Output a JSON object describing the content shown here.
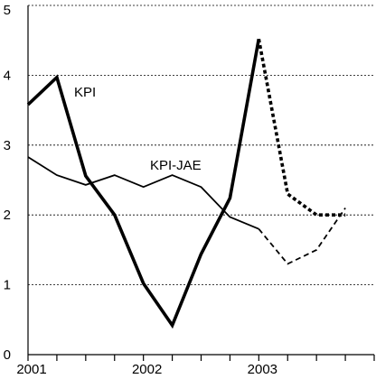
{
  "chart_data": {
    "type": "line",
    "title": "",
    "xlabel": "",
    "ylabel": "",
    "xlim": [
      2001.0,
      2004.0
    ],
    "ylim": [
      0,
      5
    ],
    "grid": {
      "y": true,
      "style": "dashed"
    },
    "x_ticks": [
      2001,
      2002,
      2003
    ],
    "y_ticks": [
      0,
      1,
      2,
      3,
      4,
      5
    ],
    "series": [
      {
        "name": "KPI",
        "line_weight": "thick",
        "color": "#000000",
        "actual": [
          {
            "x": 2001.0,
            "y": 3.58
          },
          {
            "x": 2001.25,
            "y": 3.97
          },
          {
            "x": 2001.5,
            "y": 2.56
          },
          {
            "x": 2001.75,
            "y": 2.0
          },
          {
            "x": 2002.0,
            "y": 1.02
          },
          {
            "x": 2002.25,
            "y": 0.42
          },
          {
            "x": 2002.5,
            "y": 1.44
          },
          {
            "x": 2002.75,
            "y": 2.24
          },
          {
            "x": 2003.0,
            "y": 4.52
          }
        ],
        "forecast": [
          {
            "x": 2003.0,
            "y": 4.52
          },
          {
            "x": 2003.25,
            "y": 2.3
          },
          {
            "x": 2003.5,
            "y": 2.0
          },
          {
            "x": 2003.75,
            "y": 2.0
          }
        ]
      },
      {
        "name": "KPI-JAE",
        "line_weight": "thin",
        "color": "#000000",
        "actual": [
          {
            "x": 2001.0,
            "y": 2.83
          },
          {
            "x": 2001.25,
            "y": 2.57
          },
          {
            "x": 2001.5,
            "y": 2.43
          },
          {
            "x": 2001.75,
            "y": 2.57
          },
          {
            "x": 2002.0,
            "y": 2.4
          },
          {
            "x": 2002.25,
            "y": 2.57
          },
          {
            "x": 2002.5,
            "y": 2.4
          },
          {
            "x": 2002.75,
            "y": 1.97
          },
          {
            "x": 2003.0,
            "y": 1.8
          }
        ],
        "forecast": [
          {
            "x": 2003.0,
            "y": 1.8
          },
          {
            "x": 2003.25,
            "y": 1.3
          },
          {
            "x": 2003.5,
            "y": 1.5
          },
          {
            "x": 2003.75,
            "y": 2.1
          }
        ]
      }
    ]
  }
}
